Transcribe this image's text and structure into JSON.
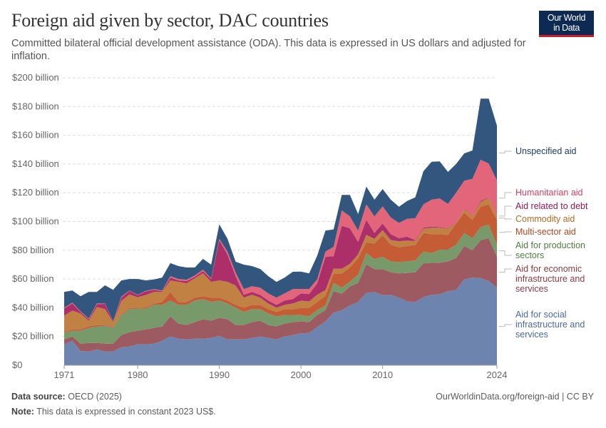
{
  "header": {
    "title": "Foreign aid given by sector, DAC countries",
    "subtitle": "Committed bilateral official development assistance (ODA). This data is expressed in US dollars and adjusted for inflation.",
    "logo_line1": "Our World",
    "logo_line2": "in Data"
  },
  "footer": {
    "source_label": "Data source:",
    "source": "OECD (2025)",
    "note_label": "Note:",
    "note": "This data is expressed in constant 2023 US$.",
    "url": "OurWorldinData.org/foreign-aid | CC BY"
  },
  "chart_data": {
    "type": "area",
    "stacked": true,
    "grid": "horizontal dashed",
    "legend": "right, inline labels",
    "ylim": [
      0,
      200
    ],
    "yticks": [
      "$0",
      "$20 billion",
      "$40 billion",
      "$60 billion",
      "$80 billion",
      "$100 billion",
      "$120 billion",
      "$140 billion",
      "$160 billion",
      "$180 billion",
      "$200 billion"
    ],
    "xticks": [
      "1971",
      "1980",
      "1990",
      "2000",
      "2010",
      "2024"
    ],
    "unit": "billion US$",
    "x": [
      1971,
      1972,
      1973,
      1974,
      1975,
      1976,
      1977,
      1978,
      1979,
      1980,
      1981,
      1982,
      1983,
      1984,
      1985,
      1986,
      1987,
      1988,
      1989,
      1990,
      1991,
      1992,
      1993,
      1994,
      1995,
      1996,
      1997,
      1998,
      1999,
      2000,
      2001,
      2002,
      2003,
      2004,
      2005,
      2006,
      2007,
      2008,
      2009,
      2010,
      2011,
      2012,
      2013,
      2014,
      2015,
      2016,
      2017,
      2018,
      2019,
      2020,
      2021,
      2022,
      2023,
      2024
    ],
    "series": [
      {
        "name": "Aid for social infrastructure and services",
        "color": "#6d85ae",
        "label_color": "#4a68a3",
        "values": [
          14.5,
          17,
          10,
          9.5,
          11,
          9.5,
          9.5,
          12.5,
          13,
          14.5,
          14.5,
          15,
          17,
          20,
          18.5,
          18,
          18.5,
          18.5,
          19,
          20.5,
          18,
          18,
          18,
          19,
          20,
          19,
          18,
          20,
          21,
          22.2,
          22.5,
          26.7,
          30.5,
          36.6,
          38.3,
          41.6,
          44,
          50.3,
          51,
          48.7,
          49,
          47,
          44.4,
          44,
          47.4,
          49,
          49.4,
          51.5,
          52.3,
          59.8,
          61,
          60.6,
          58.6,
          54
        ]
      },
      {
        "name": "Aid for economic infrastructure and services",
        "color": "#9e5a61",
        "label_color": "#8b3a47",
        "values": [
          3.5,
          3,
          5,
          6,
          4.5,
          5.5,
          5.5,
          8.5,
          10,
          9.5,
          10.5,
          11,
          10,
          14,
          10.5,
          10,
          11.5,
          13.5,
          12,
          12.5,
          14,
          10,
          10,
          11,
          11,
          9,
          9,
          9,
          9,
          8.3,
          7.5,
          8.2,
          7.8,
          14.9,
          11.5,
          13.2,
          13.3,
          19.9,
          15.9,
          18.2,
          15.7,
          16.9,
          19.8,
          20.7,
          23.4,
          22.2,
          21.9,
          20.7,
          22.3,
          23.1,
          19.1,
          26.4,
          29.8,
          21.5
        ]
      },
      {
        "name": "Aid for production sectors",
        "color": "#789a6b",
        "label_color": "#4f7d40",
        "values": [
          4.5,
          4,
          9,
          10.5,
          11.5,
          12.4,
          11,
          14,
          16,
          15.4,
          14.4,
          16,
          15,
          11,
          13,
          14,
          15,
          14,
          13,
          12,
          11,
          12,
          9,
          9,
          8,
          8,
          7,
          6,
          5,
          4.4,
          4.1,
          3.4,
          3.3,
          5.8,
          4.2,
          3.3,
          5.8,
          7.8,
          6.9,
          8.6,
          7.5,
          7.9,
          8,
          8.3,
          8.3,
          6.8,
          9.1,
          8.2,
          9.1,
          9.1,
          8.3,
          9.1,
          9.4,
          8.2
        ]
      },
      {
        "name": "Multi-sector aid",
        "color": "#c45c36",
        "label_color": "#b2461c",
        "values": [
          0.5,
          1,
          1,
          1,
          1,
          0.6,
          0.5,
          0.7,
          0.7,
          0.6,
          0.8,
          0.8,
          2,
          6,
          2,
          2,
          2,
          2,
          3,
          2,
          2,
          2,
          3,
          3,
          3,
          3,
          3,
          4,
          4,
          5,
          5.8,
          5.7,
          6.6,
          6.6,
          9.9,
          9.9,
          11.5,
          7.4,
          10.8,
          14.9,
          11.5,
          10.3,
          10.7,
          10.7,
          12.9,
          13.2,
          10.8,
          10.3,
          14.9,
          14.1,
          12.7,
          14.1,
          14.1,
          17.4
        ]
      },
      {
        "name": "Commodity aid",
        "color": "#c08142",
        "label_color": "#b46c22",
        "values": [
          11.5,
          13,
          11,
          4,
          12.5,
          11,
          3.5,
          9,
          9.6,
          7.3,
          8.7,
          8.2,
          7,
          8,
          14,
          13,
          13.5,
          16,
          11,
          12,
          13,
          13.5,
          7,
          7,
          5,
          4,
          3,
          3,
          4,
          5,
          4.5,
          5,
          4.1,
          3.3,
          3.3,
          2.5,
          2.5,
          5.3,
          3.3,
          3.6,
          3.4,
          4.1,
          3.8,
          2.8,
          3,
          4.5,
          4.5,
          4.3,
          0.5,
          2.5,
          2.5,
          3.3,
          4.6,
          2.5
        ]
      },
      {
        "name": "Aid related to debt",
        "color": "#ad2f6a",
        "label_color": "#8e1a52",
        "values": [
          5,
          5,
          1,
          1,
          2,
          3.7,
          0.3,
          2.3,
          2.4,
          1.5,
          2.5,
          1.5,
          0.5,
          2,
          1,
          1.5,
          1,
          1.5,
          2,
          28,
          19,
          6.5,
          2,
          2,
          2,
          2,
          2,
          3,
          3,
          5.1,
          5.1,
          8,
          23.2,
          8.6,
          29.8,
          24.8,
          8.6,
          10.4,
          4.1,
          4.6,
          4.1,
          2.2,
          2.8,
          0.5,
          0.7,
          0.8,
          0.5,
          0.3,
          0.3,
          0.3,
          0.3,
          0.8,
          0.3,
          0.3
        ]
      },
      {
        "name": "Humanitarian aid",
        "color": "#e2657a",
        "label_color": "#d6405c",
        "values": [
          0.5,
          0.5,
          0.5,
          0.5,
          0.5,
          0.3,
          0.2,
          0.8,
          0.3,
          0.2,
          0.3,
          0.5,
          0.5,
          1,
          1,
          1,
          1,
          1,
          0.5,
          1,
          2,
          2.5,
          4,
          4,
          5,
          5,
          5,
          5,
          7,
          3.1,
          3.6,
          2.8,
          3.6,
          6.6,
          10.7,
          8.3,
          8,
          10.8,
          11.6,
          11.9,
          11.6,
          10.6,
          12.4,
          15.3,
          16.2,
          18.7,
          19.8,
          16.9,
          20.6,
          19.5,
          25.8,
          28.7,
          23.5,
          24.8
        ]
      },
      {
        "name": "Unspecified aid",
        "color": "#33567f",
        "label_color": "#1c3a6b",
        "values": [
          11,
          8.5,
          10.5,
          18.5,
          8,
          12.6,
          22,
          11.2,
          8,
          11,
          7.3,
          6.7,
          9,
          9,
          9,
          8.5,
          5.5,
          7.5,
          9.5,
          10,
          9,
          7.5,
          17,
          14,
          13,
          12,
          11,
          11,
          12,
          12,
          10.8,
          16.5,
          14.6,
          12.1,
          10.8,
          14.9,
          11.5,
          12.4,
          11.6,
          12.1,
          12.4,
          11.2,
          12.4,
          14.5,
          23.1,
          26.4,
          25.8,
          22.3,
          20,
          19,
          19.7,
          42.5,
          45.2,
          38
        ]
      }
    ]
  }
}
